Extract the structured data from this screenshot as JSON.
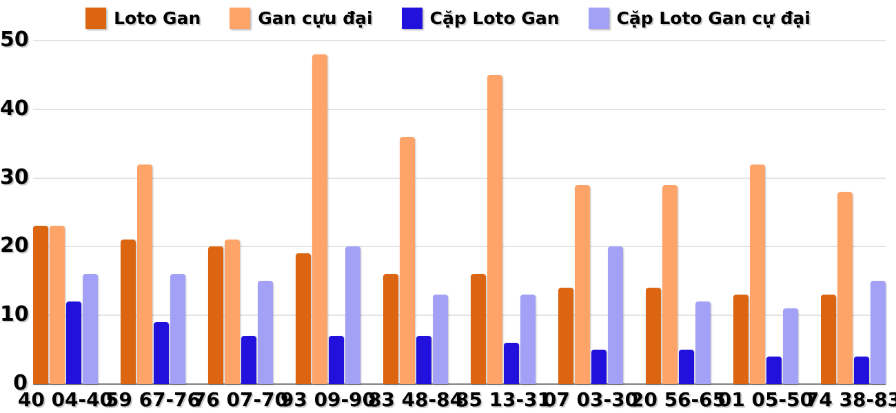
{
  "chart_data": {
    "type": "bar",
    "title": "",
    "xlabel": "",
    "ylabel": "",
    "categories": [
      "40 04-40",
      "59 67-76",
      "76 07-70",
      "93 09-90",
      "83 48-84",
      "85 13-31",
      "07 03-30",
      "20 56-65",
      "01 05-50",
      "74 38-83"
    ],
    "series": [
      {
        "name": "Loto Gan",
        "color": "#DC6511",
        "values": [
          23,
          21,
          20,
          19,
          16,
          16,
          14,
          14,
          13,
          13
        ]
      },
      {
        "name": "Gan cựu đại",
        "color": "#FFA469",
        "values": [
          23,
          32,
          21,
          48,
          36,
          45,
          29,
          29,
          32,
          28
        ]
      },
      {
        "name": "Cặp Loto Gan",
        "color": "#2211DC",
        "values": [
          12,
          9,
          7,
          7,
          7,
          6,
          5,
          5,
          4,
          4
        ]
      },
      {
        "name": "Cặp Loto Gan cự đại",
        "color": "#A3A0F8",
        "values": [
          16,
          16,
          15,
          20,
          13,
          13,
          20,
          12,
          11,
          15
        ]
      }
    ],
    "ylim": [
      0,
      50
    ],
    "yticks": [
      0,
      10,
      20,
      30,
      40,
      50
    ],
    "grid": true,
    "legend_position": "top",
    "colors": {
      "background": "#FFFFFF",
      "gridline": "#E3E3E3",
      "baseline": "#808080",
      "text": "#000000"
    }
  }
}
